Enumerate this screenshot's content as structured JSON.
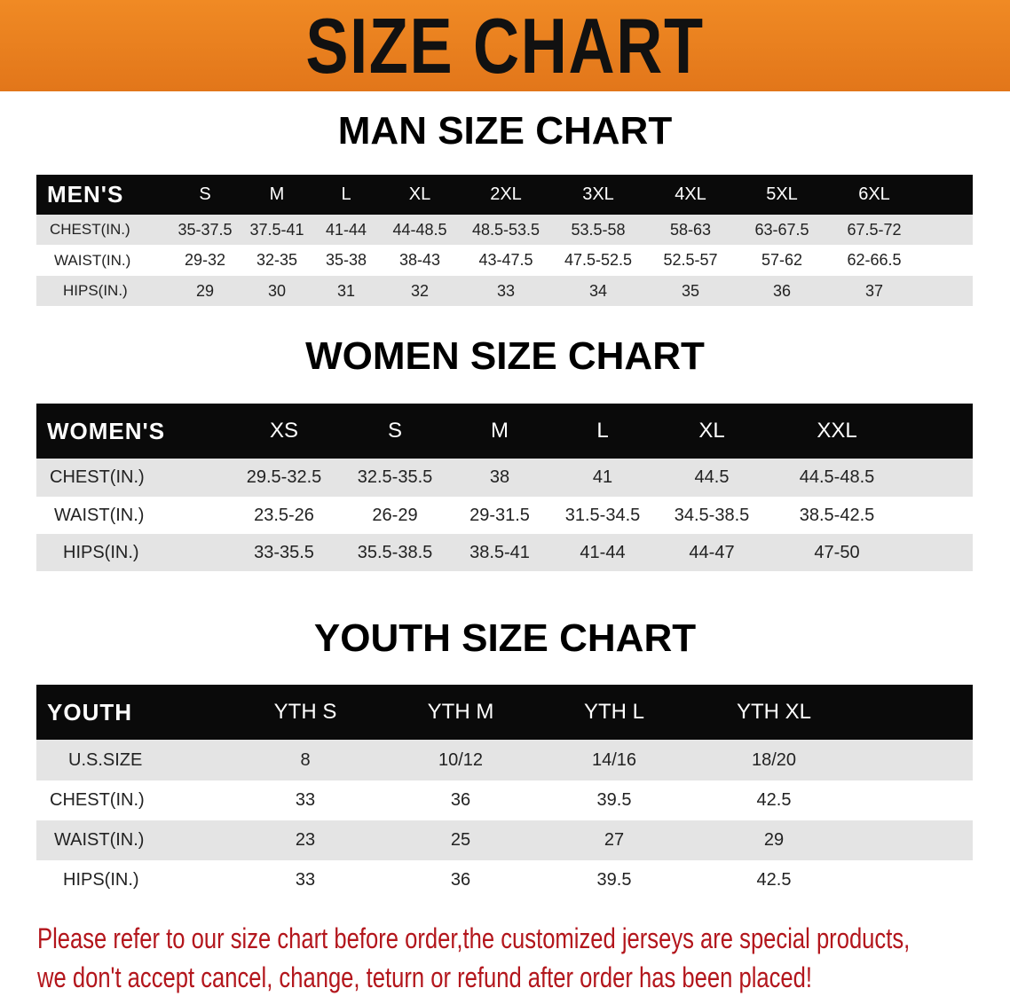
{
  "banner_title": "SIZE CHART",
  "colors": {
    "banner": "#e8801e",
    "header_row": "#0a0a0a",
    "stripe": "#e4e4e4",
    "note": "#b3161c"
  },
  "men": {
    "title": "MAN SIZE CHART",
    "header": "MEN'S",
    "sizes": [
      "S",
      "M",
      "L",
      "XL",
      "2XL",
      "3XL",
      "4XL",
      "5XL",
      "6XL"
    ],
    "rows": [
      {
        "label": "CHEST(IN.)",
        "values": [
          "35-37.5",
          "37.5-41",
          "41-44",
          "44-48.5",
          "48.5-53.5",
          "53.5-58",
          "58-63",
          "63-67.5",
          "67.5-72"
        ]
      },
      {
        "label": "WAIST(IN.)",
        "values": [
          "29-32",
          "32-35",
          "35-38",
          "38-43",
          "43-47.5",
          "47.5-52.5",
          "52.5-57",
          "57-62",
          "62-66.5"
        ]
      },
      {
        "label": "HIPS(IN.)",
        "values": [
          "29",
          "30",
          "31",
          "32",
          "33",
          "34",
          "35",
          "36",
          "37"
        ]
      }
    ]
  },
  "women": {
    "title": "WOMEN SIZE CHART",
    "header": "WOMEN'S",
    "sizes": [
      "XS",
      "S",
      "M",
      "L",
      "XL",
      "XXL"
    ],
    "rows": [
      {
        "label": "CHEST(IN.)",
        "values": [
          "29.5-32.5",
          "32.5-35.5",
          "38",
          "41",
          "44.5",
          "44.5-48.5"
        ]
      },
      {
        "label": "WAIST(IN.)",
        "values": [
          "23.5-26",
          "26-29",
          "29-31.5",
          "31.5-34.5",
          "34.5-38.5",
          "38.5-42.5"
        ]
      },
      {
        "label": "HIPS(IN.)",
        "values": [
          "33-35.5",
          "35.5-38.5",
          "38.5-41",
          "41-44",
          "44-47",
          "47-50"
        ]
      }
    ]
  },
  "youth": {
    "title": "YOUTH SIZE CHART",
    "header": "YOUTH",
    "sizes": [
      "YTH S",
      "YTH M",
      "YTH L",
      "YTH XL"
    ],
    "rows": [
      {
        "label": "U.S.SIZE",
        "values": [
          "8",
          "10/12",
          "14/16",
          "18/20"
        ]
      },
      {
        "label": "CHEST(IN.)",
        "values": [
          "33",
          "36",
          "39.5",
          "42.5"
        ]
      },
      {
        "label": "WAIST(IN.)",
        "values": [
          "23",
          "25",
          "27",
          "29"
        ]
      },
      {
        "label": "HIPS(IN.)",
        "values": [
          "33",
          "36",
          "39.5",
          "42.5"
        ]
      }
    ]
  },
  "note_lines": [
    "Please refer to our size chart before order,the customized jerseys are special products,",
    "we don't accept cancel, change, teturn or refund after order has been placed!"
  ]
}
